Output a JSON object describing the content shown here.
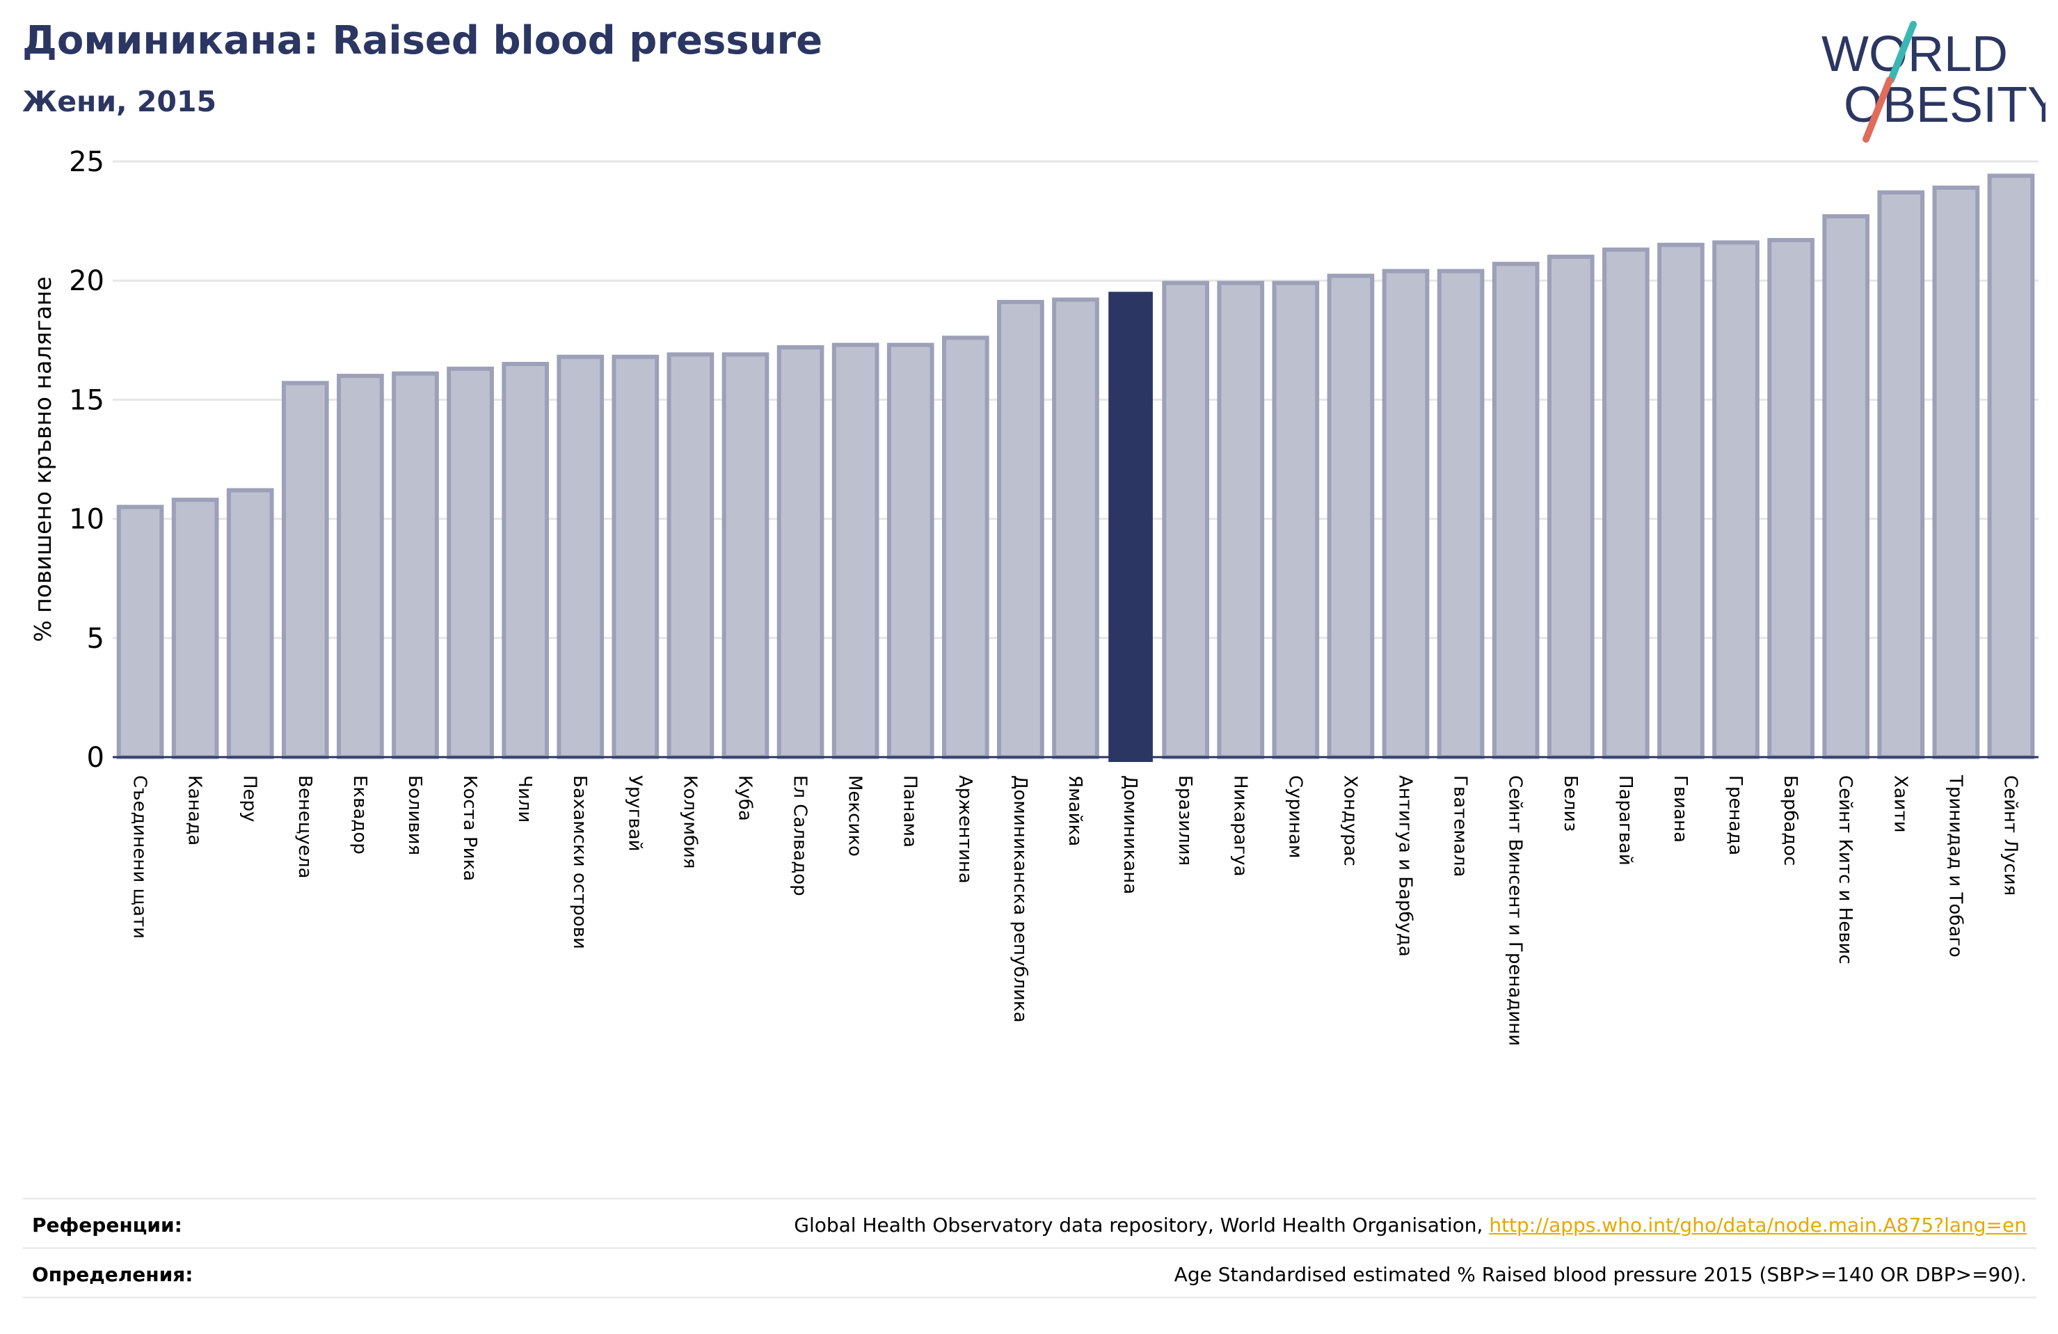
{
  "header": {
    "title": "Доминикана: Raised blood pressure",
    "subtitle": "Жени, 2015"
  },
  "logo": {
    "line1": "WORLD",
    "line2": "OBESITY"
  },
  "colors": {
    "bar": "#bdc0ce",
    "bar_border": "#9ca0b8",
    "highlight": "#2b3662",
    "title": "#2b3662",
    "link": "#e6a800"
  },
  "chart_data": {
    "type": "bar",
    "ylabel": "% повишено кръвно налягане",
    "ylim": [
      0,
      25
    ],
    "yticks": [
      0,
      5,
      10,
      15,
      20,
      25
    ],
    "grid": true,
    "highlight": "Доминикана",
    "categories": [
      "Съединени щати",
      "Канада",
      "Перу",
      "Венецуела",
      "Еквадор",
      "Боливия",
      "Коста Рика",
      "Чили",
      "Бахамски острови",
      "Уругвай",
      "Колумбия",
      "Куба",
      "Ел Салвадор",
      "Мексико",
      "Панама",
      "Аржентина",
      "Доминиканска република",
      "Ямайка",
      "Доминикана",
      "Бразилия",
      "Никарагуа",
      "Суринам",
      "Хондурас",
      "Антигуа и Барбуда",
      "Гватемала",
      "Сейнт Винсент и Гренадини",
      "Белиз",
      "Парагвай",
      "Гвиана",
      "Гренада",
      "Барбадос",
      "Сейнт Китс и Невис",
      "Хаити",
      "Тринидад и Тобаго",
      "Сейнт Лусия"
    ],
    "values": [
      10.5,
      10.8,
      11.2,
      15.7,
      16.0,
      16.1,
      16.3,
      16.5,
      16.8,
      16.8,
      16.9,
      16.9,
      17.2,
      17.3,
      17.3,
      17.6,
      19.1,
      19.2,
      19.5,
      19.9,
      19.9,
      19.9,
      20.2,
      20.4,
      20.4,
      20.7,
      21.0,
      21.3,
      21.5,
      21.6,
      21.7,
      22.7,
      23.7,
      23.9,
      24.4
    ]
  },
  "footer": {
    "references_label": "Референции:",
    "references_text": "Global Health Observatory data repository, World Health Organisation, ",
    "references_link": "http://apps.who.int/gho/data/node.main.A875?lang=en",
    "definitions_label": "Определения:",
    "definitions_text": "Age Standardised estimated % Raised blood pressure 2015 (SBP>=140 OR DBP>=90)."
  }
}
